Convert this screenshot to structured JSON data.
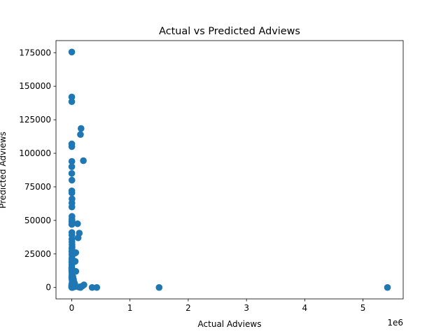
{
  "chart_data": {
    "type": "scatter",
    "title": "Actual vs Predicted Adviews",
    "xlabel": "Actual Adviews",
    "ylabel": "Predicted Adviews",
    "x_offset_label": "1e6",
    "xlim": [
      -270000,
      5690000
    ],
    "ylim": [
      -8500,
      184000
    ],
    "x_ticks": [
      0,
      1000000,
      2000000,
      3000000,
      4000000,
      5000000
    ],
    "x_tick_labels": [
      "0",
      "1",
      "2",
      "3",
      "4",
      "5"
    ],
    "y_ticks": [
      0,
      25000,
      50000,
      75000,
      100000,
      125000,
      150000,
      175000
    ],
    "y_tick_labels": [
      "0",
      "25000",
      "50000",
      "75000",
      "100000",
      "125000",
      "150000",
      "175000"
    ],
    "grid": false,
    "marker_color": "#1f77b4",
    "points": {
      "x": [
        1000,
        500,
        800,
        1200,
        1500,
        2000,
        1000,
        800,
        3000,
        1500,
        2000,
        5000,
        3000,
        2500,
        4000,
        3000,
        2000,
        1500,
        2500,
        3000,
        3500,
        4000,
        5000,
        6000,
        3000,
        2000,
        4000,
        5000,
        3000,
        2000,
        1500,
        8000,
        2000,
        1000,
        500,
        800,
        2000,
        4000,
        6000,
        3000,
        2000,
        1000,
        5000,
        8000,
        10000,
        4000,
        30000,
        50000,
        60000,
        70000,
        10000,
        20000,
        30000,
        40000,
        20000,
        10000,
        30000,
        50000,
        20000,
        15000,
        10000,
        5000,
        70000,
        50000,
        30000,
        100000,
        130000,
        110000,
        150000,
        160000,
        200000,
        210000,
        180000,
        140000,
        120000,
        150000,
        350000,
        430000,
        1500000,
        5420000,
        0,
        0,
        0,
        1000,
        2000,
        500,
        1500,
        3000,
        2000,
        1000
      ],
      "y": [
        175500,
        142000,
        138500,
        107000,
        105000,
        94000,
        90000,
        85000,
        80000,
        72000,
        70500,
        66000,
        63000,
        60000,
        53000,
        51000,
        49000,
        47000,
        41000,
        39000,
        36000,
        34000,
        32000,
        30000,
        29000,
        27000,
        25000,
        24000,
        22000,
        21000,
        19000,
        18000,
        17000,
        15000,
        14000,
        13000,
        12000,
        11000,
        10000,
        9000,
        8000,
        7000,
        6000,
        5000,
        4000,
        3000,
        20000,
        25500,
        19500,
        26000,
        5000,
        8000,
        6000,
        4000,
        3000,
        2000,
        1000,
        500,
        200,
        100,
        0,
        50000,
        12000,
        3000,
        1500,
        47500,
        40500,
        37000,
        114000,
        118500,
        94500,
        2000,
        1000,
        500,
        300,
        0,
        0,
        0,
        0,
        0,
        1000,
        2000,
        500,
        800,
        300,
        200,
        100,
        0,
        400,
        600
      ]
    }
  }
}
